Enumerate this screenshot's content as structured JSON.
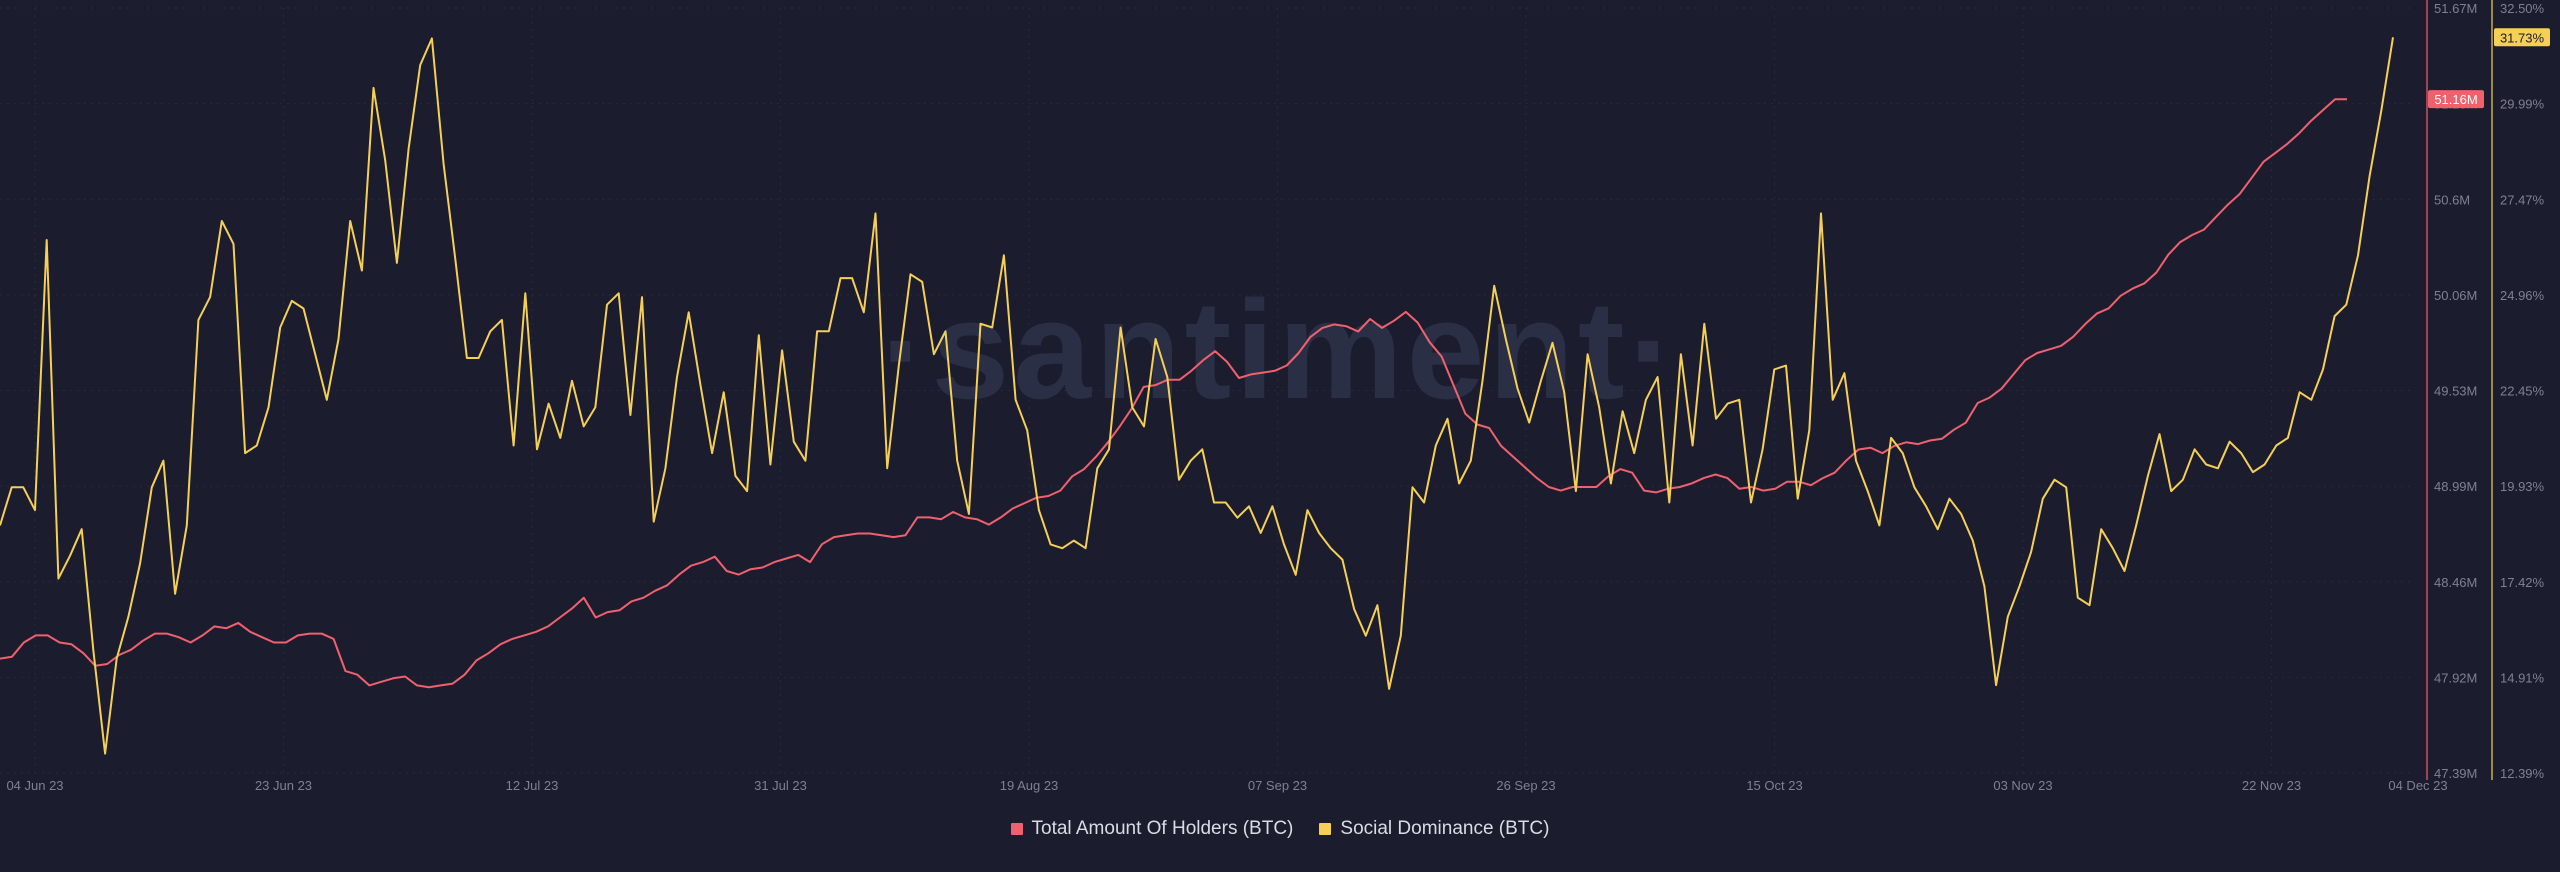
{
  "watermark": "·santiment·",
  "colors": {
    "background": "#1b1d2e",
    "holders": "#f0616d",
    "social": "#f5cf56",
    "axis_text": "#7d8193",
    "grid": "#262a3d",
    "watermark": "#2b2f45"
  },
  "chart_data": {
    "type": "line",
    "title": "",
    "xlabel": "",
    "x_ticks": [
      "04 Jun 23",
      "23 Jun 23",
      "12 Jul 23",
      "31 Jul 23",
      "19 Aug 23",
      "07 Sep 23",
      "26 Sep 23",
      "15 Oct 23",
      "03 Nov 23",
      "22 Nov 23",
      "04 Dec 23"
    ],
    "x_range": [
      "2023-06-04",
      "2023-12-04"
    ],
    "grid": true,
    "legend_position": "bottom-center",
    "series": [
      {
        "name": "Total Amount Of Holders (BTC)",
        "axis": "left-of-pair",
        "color": "#f0616d",
        "unit": "M",
        "ylim": [
          47.39,
          51.67
        ],
        "y_ticks": [
          "51.67M",
          "51.13M",
          "50.6M",
          "50.06M",
          "49.53M",
          "48.99M",
          "48.46M",
          "47.92M",
          "47.39M"
        ],
        "last_value_label": "51.16M",
        "values": [
          48.03,
          48.04,
          48.12,
          48.16,
          48.16,
          48.12,
          48.11,
          48.06,
          47.99,
          48.0,
          48.05,
          48.08,
          48.13,
          48.17,
          48.17,
          48.15,
          48.12,
          48.16,
          48.21,
          48.2,
          48.23,
          48.18,
          48.15,
          48.12,
          48.12,
          48.16,
          48.17,
          48.17,
          48.14,
          47.96,
          47.94,
          47.88,
          47.9,
          47.92,
          47.93,
          47.88,
          47.87,
          47.88,
          47.89,
          47.94,
          48.02,
          48.06,
          48.11,
          48.14,
          48.16,
          48.18,
          48.21,
          48.26,
          48.31,
          48.37,
          48.26,
          48.29,
          48.3,
          48.35,
          48.37,
          48.41,
          48.44,
          48.5,
          48.55,
          48.57,
          48.6,
          48.52,
          48.5,
          48.53,
          48.54,
          48.57,
          48.59,
          48.61,
          48.57,
          48.67,
          48.71,
          48.72,
          48.73,
          48.73,
          48.72,
          48.71,
          48.72,
          48.82,
          48.82,
          48.81,
          48.85,
          48.82,
          48.81,
          48.78,
          48.82,
          48.87,
          48.9,
          48.93,
          48.94,
          48.97,
          49.05,
          49.09,
          49.16,
          49.24,
          49.33,
          49.43,
          49.55,
          49.56,
          49.59,
          49.59,
          49.64,
          49.7,
          49.75,
          49.69,
          49.6,
          49.62,
          49.63,
          49.64,
          49.67,
          49.74,
          49.83,
          49.88,
          49.9,
          49.89,
          49.86,
          49.93,
          49.88,
          49.92,
          49.97,
          49.91,
          49.8,
          49.72,
          49.56,
          49.4,
          49.34,
          49.32,
          49.22,
          49.16,
          49.1,
          49.04,
          48.99,
          48.97,
          48.99,
          48.99,
          48.99,
          49.05,
          49.09,
          49.07,
          48.97,
          48.96,
          48.98,
          48.99,
          49.01,
          49.04,
          49.06,
          49.04,
          48.98,
          48.99,
          48.97,
          48.98,
          49.02,
          49.02,
          49.0,
          49.04,
          49.07,
          49.14,
          49.2,
          49.21,
          49.18,
          49.22,
          49.24,
          49.23,
          49.25,
          49.26,
          49.31,
          49.35,
          49.46,
          49.49,
          49.54,
          49.62,
          49.7,
          49.74,
          49.76,
          49.78,
          49.83,
          49.9,
          49.96,
          49.99,
          50.06,
          50.1,
          50.13,
          50.19,
          50.29,
          50.36,
          50.4,
          50.43,
          50.5,
          50.57,
          50.63,
          50.72,
          50.81,
          50.86,
          50.91,
          50.97,
          51.04,
          51.1,
          51.16,
          51.16
        ]
      },
      {
        "name": "Social Dominance (BTC)",
        "axis": "right",
        "color": "#f5cf56",
        "unit": "%",
        "ylim": [
          12.39,
          32.5
        ],
        "y_ticks": [
          "32.50%",
          "29.99%",
          "27.47%",
          "24.96%",
          "22.45%",
          "19.93%",
          "17.42%",
          "14.91%",
          "12.39%"
        ],
        "last_value_label": "31.73%",
        "values": [
          18.9,
          19.9,
          19.9,
          19.3,
          26.4,
          17.5,
          18.1,
          18.8,
          15.6,
          12.9,
          15.4,
          16.5,
          17.9,
          19.9,
          20.6,
          17.1,
          18.9,
          24.3,
          24.9,
          26.9,
          26.3,
          20.8,
          21.0,
          22.0,
          24.1,
          24.8,
          24.6,
          23.4,
          22.2,
          23.8,
          26.9,
          25.6,
          30.4,
          28.5,
          25.8,
          28.8,
          31.0,
          31.7,
          28.4,
          25.9,
          23.3,
          23.3,
          24.0,
          24.3,
          21.0,
          25.0,
          20.9,
          22.1,
          21.2,
          22.7,
          21.5,
          22.0,
          24.7,
          25.0,
          21.8,
          24.9,
          19.0,
          20.4,
          22.8,
          24.5,
          22.6,
          20.8,
          22.4,
          20.2,
          19.8,
          23.9,
          20.5,
          23.5,
          21.1,
          20.6,
          24.0,
          24.0,
          25.4,
          25.4,
          24.5,
          27.1,
          20.4,
          23.1,
          25.5,
          25.3,
          23.4,
          24.0,
          20.6,
          19.2,
          24.2,
          24.1,
          26.0,
          22.2,
          21.4,
          19.3,
          18.4,
          18.3,
          18.5,
          18.3,
          20.4,
          20.9,
          24.1,
          22.0,
          21.5,
          23.8,
          22.8,
          20.1,
          20.6,
          20.9,
          19.5,
          19.5,
          19.1,
          19.4,
          18.7,
          19.4,
          18.4,
          17.6,
          19.3,
          18.7,
          18.3,
          18.0,
          16.7,
          16.0,
          16.8,
          14.6,
          16.0,
          19.9,
          19.5,
          21.0,
          21.7,
          20.0,
          20.6,
          22.7,
          25.2,
          23.8,
          22.5,
          21.6,
          22.7,
          23.7,
          22.4,
          19.8,
          23.4,
          22.0,
          20.0,
          21.9,
          20.8,
          22.2,
          22.8,
          19.5,
          23.4,
          21.0,
          24.2,
          21.7,
          22.1,
          22.2,
          19.5,
          20.9,
          23.0,
          23.1,
          19.6,
          21.4,
          27.1,
          22.2,
          22.9,
          20.6,
          19.8,
          18.9,
          21.2,
          20.8,
          19.9,
          19.4,
          18.8,
          19.6,
          19.2,
          18.5,
          17.3,
          14.7,
          16.5,
          17.3,
          18.2,
          19.6,
          20.1,
          19.9,
          17.0,
          16.8,
          18.8,
          18.3,
          17.7,
          18.9,
          20.2,
          21.3,
          19.8,
          20.1,
          20.9,
          20.5,
          20.4,
          21.1,
          20.8,
          20.3,
          20.5,
          21.0,
          21.2,
          22.4,
          22.2,
          23.0,
          24.4,
          24.7,
          26.0,
          28.1,
          29.8,
          31.73
        ]
      }
    ],
    "legend": [
      {
        "label": "Total Amount Of Holders (BTC)",
        "color": "#f0616d"
      },
      {
        "label": "Social Dominance (BTC)",
        "color": "#f5cf56"
      }
    ]
  }
}
